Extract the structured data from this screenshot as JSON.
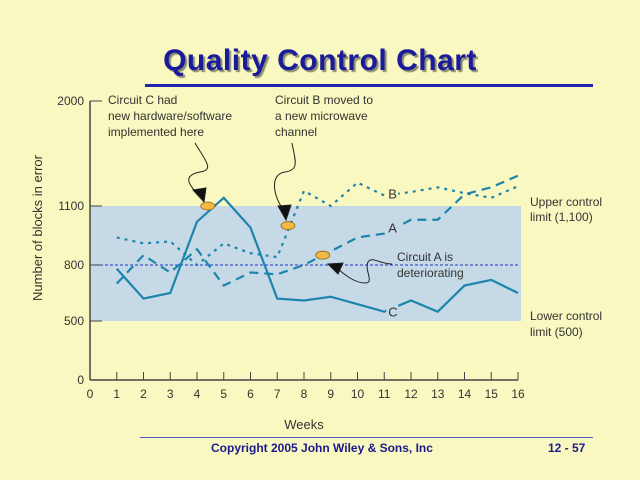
{
  "slide": {
    "title": "Quality Control Chart",
    "copyright": "Copyright 2005 John Wiley & Sons, Inc",
    "page_number": "12 - 57"
  },
  "colors": {
    "background": "#f9f8c0",
    "control_band": "#c6d9e6",
    "series_line": "#1d85ad",
    "title": "#1a1a9c",
    "center_line": "#2233cc",
    "marker": "#f5b845"
  },
  "chart_data": {
    "type": "line",
    "xlabel": "Weeks",
    "ylabel": "Number of blocks in error",
    "x": [
      1,
      2,
      3,
      4,
      5,
      6,
      7,
      8,
      9,
      10,
      11,
      12,
      13,
      14,
      15,
      16
    ],
    "x_ticks": [
      "0",
      "1",
      "2",
      "3",
      "4",
      "5",
      "6",
      "7",
      "8",
      "9",
      "10",
      "11",
      "12",
      "13",
      "14",
      "15",
      "16"
    ],
    "y_ticks": [
      "0",
      "500",
      "800",
      "1100",
      "2000"
    ],
    "xlim": [
      0,
      16
    ],
    "ylim": [
      0,
      2000
    ],
    "grid": false,
    "upper_control_limit": 1100,
    "lower_control_limit": 500,
    "center_line": 800,
    "series": [
      {
        "name": "A",
        "style": "long-dash",
        "values": [
          700,
          850,
          760,
          880,
          690,
          760,
          750,
          800,
          870,
          940,
          960,
          1030,
          1030,
          1200,
          1260,
          1360
        ]
      },
      {
        "name": "B",
        "style": "dotted",
        "values": [
          940,
          910,
          920,
          800,
          910,
          860,
          840,
          1230,
          1100,
          1300,
          1190,
          1220,
          1260,
          1210,
          1170,
          1270
        ]
      },
      {
        "name": "C",
        "style": "solid",
        "values": [
          780,
          620,
          650,
          1020,
          1170,
          990,
          620,
          610,
          630,
          590,
          550,
          610,
          550,
          690,
          720,
          650
        ]
      }
    ],
    "annotations": {
      "ucl_label_1": "Upper control",
      "ucl_label_2": "limit (1,100)",
      "lcl_label_1": "Lower control",
      "lcl_label_2": "limit (500)",
      "circuit_c_1": "Circuit C had",
      "circuit_c_2": "new hardware/software",
      "circuit_c_3": "implemented here",
      "circuit_b_1": "Circuit B moved to",
      "circuit_b_2": "a new microwave",
      "circuit_b_3": "channel",
      "circuit_a_1": "Circuit A is",
      "circuit_a_2": "deteriorating"
    },
    "markers": [
      {
        "series": "C",
        "x": 4.4,
        "y": 1100
      },
      {
        "series": "B",
        "x": 7.4,
        "y": 1000
      },
      {
        "series": "A",
        "x": 8.7,
        "y": 850
      }
    ]
  }
}
